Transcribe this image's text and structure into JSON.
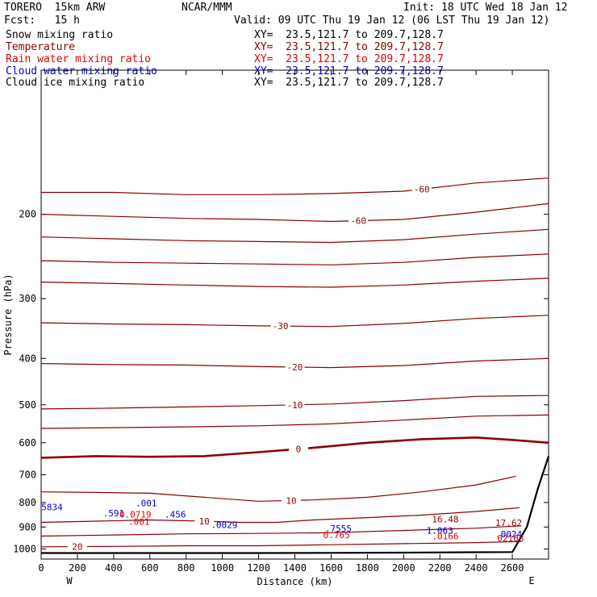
{
  "header": {
    "model": "TORERO  15km ARW",
    "center": "NCAR/MMM",
    "init": "Init: 18 UTC Wed 18 Jan 12",
    "fcst": "Fcst:   15 h",
    "valid": "Valid: 09 UTC Thu 19 Jan 12 (06 LST Thu 19 Jan 12)"
  },
  "fields": [
    {
      "label": "Snow mixing ratio",
      "xy": "XY=  23.5,121.7 to 209.7,128.7",
      "color": "#000000"
    },
    {
      "label": "Temperature",
      "xy": "XY=  23.5,121.7 to 209.7,128.7",
      "color": "#8b0000"
    },
    {
      "label": "Rain water mixing ratio",
      "xy": "XY=  23.5,121.7 to 209.7,128.7",
      "color": "#e00000"
    },
    {
      "label": "Cloud water mixing ratio",
      "xy": "XY=  23.5,121.7 to 209.7,128.7",
      "color": "#0000cc"
    },
    {
      "label": "Cloud ice mixing ratio",
      "xy": "XY=  23.5,121.7 to 209.7,128.7",
      "color": "#000000"
    }
  ],
  "chart_data": {
    "type": "line",
    "xlabel": "Distance (km)",
    "ylabel": "Pressure (hPa)",
    "xlim": [
      0,
      2800
    ],
    "ylim": [
      100,
      1050
    ],
    "y_scale": "log",
    "x_ticks": [
      0,
      200,
      400,
      600,
      800,
      1000,
      1200,
      1400,
      1600,
      1800,
      2000,
      2200,
      2400,
      2600
    ],
    "y_ticks": [
      200,
      300,
      400,
      500,
      600,
      700,
      800,
      900,
      1000
    ],
    "endpoints": {
      "left": "W",
      "right": "E"
    },
    "temperature_contours": [
      {
        "label": "-60",
        "x": [
          0,
          400,
          800,
          1200,
          1600,
          2000,
          2400,
          2800
        ],
        "p": [
          200,
          202,
          204,
          205,
          207,
          205,
          198,
          190
        ],
        "label_x": 1750
      },
      {
        "label": "-60",
        "x": [
          0,
          400,
          800,
          1200,
          1600,
          2000,
          2400,
          2800
        ],
        "p": [
          180,
          180,
          182,
          182,
          181,
          179,
          172,
          168
        ],
        "label_x": 2100
      },
      {
        "label": "",
        "x": [
          0,
          400,
          800,
          1200,
          1600,
          2000,
          2400,
          2800
        ],
        "p": [
          223,
          225,
          227,
          228,
          229,
          226,
          220,
          215
        ]
      },
      {
        "label": "",
        "x": [
          0,
          400,
          800,
          1200,
          1600,
          2000,
          2400,
          2800
        ],
        "p": [
          250,
          252,
          253,
          254,
          255,
          252,
          246,
          242
        ]
      },
      {
        "label": "",
        "x": [
          0,
          400,
          800,
          1200,
          1600,
          2000,
          2400,
          2800
        ],
        "p": [
          277,
          279,
          281,
          283,
          284,
          281,
          276,
          272
        ]
      },
      {
        "label": "-30",
        "x": [
          0,
          400,
          800,
          1200,
          1600,
          2000,
          2400,
          2800
        ],
        "p": [
          337,
          339,
          340,
          342,
          343,
          338,
          330,
          325
        ],
        "label_x": 1320
      },
      {
        "label": "-20",
        "x": [
          0,
          400,
          800,
          1200,
          1600,
          2000,
          2400,
          2800
        ],
        "p": [
          410,
          412,
          413,
          416,
          418,
          414,
          405,
          400
        ],
        "label_x": 1400
      },
      {
        "label": "-10",
        "x": [
          0,
          400,
          800,
          1200,
          1600,
          2000,
          2400,
          2800
        ],
        "p": [
          510,
          508,
          505,
          502,
          498,
          490,
          480,
          478
        ],
        "label_x": 1400
      },
      {
        "label": "",
        "x": [
          0,
          400,
          800,
          1200,
          1600,
          2000,
          2400,
          2800
        ],
        "p": [
          560,
          558,
          556,
          553,
          548,
          538,
          528,
          525
        ]
      },
      {
        "label": "0",
        "x": [
          0,
          300,
          600,
          900,
          1200,
          1500,
          1800,
          2100,
          2400,
          2600,
          2800
        ],
        "p": [
          645,
          640,
          642,
          640,
          628,
          615,
          600,
          590,
          585,
          592,
          600
        ],
        "label_x": 1420,
        "bold": true
      },
      {
        "label": "10",
        "x": [
          0,
          300,
          600,
          900,
          1200,
          1500,
          1800,
          2100,
          2400,
          2620
        ],
        "p": [
          760,
          762,
          765,
          780,
          795,
          790,
          780,
          760,
          735,
          705
        ],
        "label_x": 1380
      },
      {
        "label": "10",
        "x": [
          0,
          300,
          600,
          900,
          1100,
          1300,
          1500,
          1800,
          2100,
          2400,
          2640
        ],
        "p": [
          880,
          875,
          870,
          875,
          880,
          880,
          870,
          860,
          850,
          835,
          820
        ],
        "label_x": 900
      },
      {
        "label": "",
        "x": [
          0,
          400,
          800,
          1200,
          1600,
          2000,
          2400,
          2650
        ],
        "p": [
          940,
          935,
          930,
          928,
          925,
          915,
          905,
          895
        ]
      },
      {
        "label": "20",
        "x": [
          0,
          400,
          800,
          1200,
          1600,
          2000,
          2400,
          2650
        ],
        "p": [
          990,
          988,
          985,
          985,
          980,
          975,
          970,
          965
        ],
        "label_x": 200
      }
    ],
    "surface": {
      "x": [
        0,
        400,
        800,
        1200,
        1600,
        2000,
        2400,
        2600,
        2680,
        2740,
        2800
      ],
      "p": [
        1020,
        1020,
        1020,
        1020,
        1019,
        1018,
        1016,
        1015,
        900,
        750,
        640
      ]
    },
    "annotations": [
      {
        "text": "5834",
        "x": 60,
        "p": 830,
        "color": "#0000cc"
      },
      {
        "text": ".591",
        "x": 400,
        "p": 855,
        "color": "#0000cc"
      },
      {
        "text": "0.0719",
        "x": 520,
        "p": 860,
        "color": "#e00000"
      },
      {
        "text": ".001",
        "x": 580,
        "p": 815,
        "color": "#0000cc"
      },
      {
        "text": ".456",
        "x": 740,
        "p": 860,
        "color": "#0000cc"
      },
      {
        "text": ".001",
        "x": 540,
        "p": 890,
        "color": "#e00000"
      },
      {
        "text": ".0029",
        "x": 1010,
        "p": 905,
        "color": "#0000cc"
      },
      {
        "text": ".7555",
        "x": 1640,
        "p": 920,
        "color": "#0000cc"
      },
      {
        "text": "0.765",
        "x": 1630,
        "p": 950,
        "color": "#e00000"
      },
      {
        "text": "16.48",
        "x": 2230,
        "p": 880,
        "color": "#8b0000"
      },
      {
        "text": "1.063",
        "x": 2200,
        "p": 930,
        "color": "#0000cc"
      },
      {
        "text": ".0166",
        "x": 2230,
        "p": 955,
        "color": "#e00000"
      },
      {
        "text": "17.62",
        "x": 2580,
        "p": 895,
        "color": "#8b0000"
      },
      {
        "text": ".0024",
        "x": 2580,
        "p": 945,
        "color": "#0000cc"
      },
      {
        "text": "02103",
        "x": 2590,
        "p": 965,
        "color": "#e00000"
      }
    ]
  }
}
